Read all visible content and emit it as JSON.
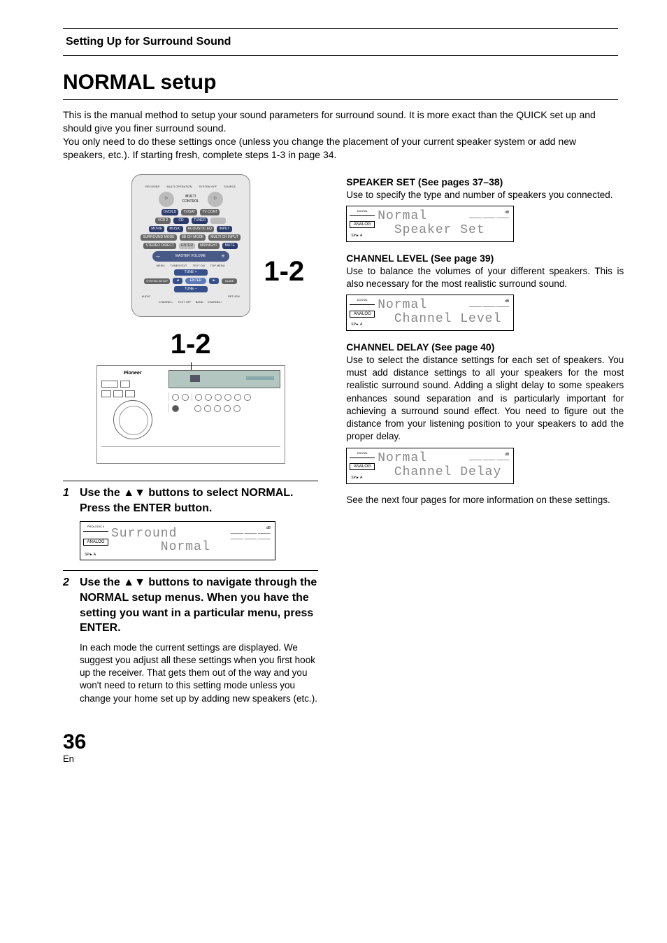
{
  "header": {
    "section_title": "Setting Up for Surround Sound"
  },
  "title": "NORMAL setup",
  "intro": {
    "p1": "This is the manual method to setup your sound parameters for surround sound. It is more exact than the QUICK set up and should give you finer surround sound.",
    "p2": "You only need to do these settings once (unless you change the placement of your current speaker system or add new speakers, etc.). If starting fresh, complete steps 1-3 in page 34."
  },
  "remote": {
    "callout": "1-2",
    "labels": {
      "receiver": "RECEIVER",
      "multi_op": "MULTI OPERATION",
      "system_off": "SYSTEM OFF",
      "source": "SOURCE",
      "multi_control": "MULTI CONTROL",
      "dvd_ld": "DVD/LD",
      "tv_sat": "TV/SAT",
      "tv_cont": "TV CONT",
      "vcr2": "VCR 2",
      "cd": "CD",
      "tuner": "TUNER",
      "movie": "MOVIE",
      "music": "MUSIC",
      "acoustic": "ACOUSTIC EQ",
      "input": "INPUT",
      "surround": "SURROUND MODE",
      "sbch": "SB CH MODE",
      "multich": "MULTI CH INPUT",
      "stereo": "STEREO DIRECT",
      "enter": "ENTER",
      "midnight": "MIDNIGHT",
      "mute": "MUTE",
      "master": "MASTER VOLUME",
      "menu": "MENU",
      "tuner_edit": "TUNER EDIT",
      "text_on": "TEXT ON",
      "top_menu": "TOP MENU",
      "tune_plus": "TUNE +",
      "tune_minus": "TUNE –",
      "system_setup": "SYSTEM SETUP",
      "guide": "GUIDE",
      "st_minus": "ST–",
      "st_plus": "ST+",
      "enter2": "ENTER",
      "audio": "AUDIO",
      "return": "RETURN",
      "channel_minus": "CHANNEL–",
      "text_off": "TEXT OFF",
      "band": "BAND",
      "channel_plus": "CHANNEL+"
    }
  },
  "unit": {
    "callout": "1-2",
    "brand": "Pioneer"
  },
  "steps": {
    "s1": {
      "num": "1",
      "title_pre": "Use the ",
      "title_arrows": "▲▼",
      "title_post": " buttons to select NORMAL. Press the ENTER button.",
      "lcd_line1": "Surround",
      "lcd_line2": "      Normal"
    },
    "s2": {
      "num": "2",
      "title_pre": "Use the ",
      "title_arrows": "▲▼",
      "title_post": " buttons to navigate through the NORMAL setup menus. When you have the setting you want in a particular menu, press ENTER.",
      "body": "In each mode the current settings are displayed. We suggest you adjust all these settings when you first hook up the receiver. That gets them out of the way and you won't need to return to this setting mode unless you change your home set up by adding new speakers (etc.)."
    }
  },
  "right": {
    "speaker_set": {
      "head": "SPEAKER SET (See pages 37–38)",
      "body": "Use to specify the type and number of speakers you connected.",
      "lcd1": "Normal",
      "lcd2": "  Speaker Set"
    },
    "channel_level": {
      "head": "CHANNEL LEVEL (See page 39)",
      "body": "Use to balance the volumes of your different speakers. This is also necessary for the most realistic surround sound.",
      "lcd1": "Normal",
      "lcd2": "  Channel Level"
    },
    "channel_delay": {
      "head": "CHANNEL DELAY (See page 40)",
      "body": "Use to select the distance settings for each set of speakers. You must add distance settings to all your speakers for the most realistic surround sound. Adding a slight delay to some speakers enhances sound separation and is particularly important for achieving a surround sound effect. You need to figure out the distance from your listening position to your speakers to add the proper delay.",
      "lcd1": "Normal",
      "lcd2": "  Channel Delay"
    },
    "footer": "See the next four pages for more information on these settings."
  },
  "lcd_badges": {
    "prologic": "PROLOGIC II",
    "analog": "ANALOG",
    "digital": "DIGITAL",
    "sp_a": "SP► A",
    "db": "dB"
  },
  "page": {
    "num": "36",
    "lang": "En"
  }
}
